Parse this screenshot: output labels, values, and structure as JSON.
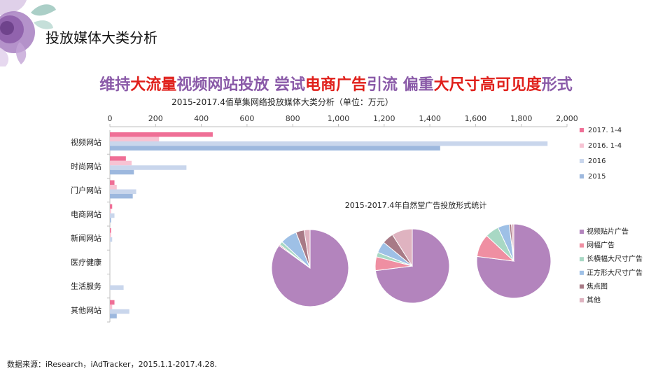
{
  "page_title": "投放媒体大类分析",
  "headline": [
    {
      "text": "维持",
      "color": "#8a5aa8"
    },
    {
      "text": "大流量",
      "color": "#e0201b"
    },
    {
      "text": "视频网站投放 尝试",
      "color": "#8a5aa8"
    },
    {
      "text": "电商广告",
      "color": "#e0201b"
    },
    {
      "text": "引流 偏重",
      "color": "#8a5aa8"
    },
    {
      "text": "大尺寸",
      "color": "#e0201b"
    },
    {
      "text": "高可见度",
      "color": "#e0201b"
    },
    {
      "text": "形式",
      "color": "#8a5aa8"
    }
  ],
  "source_note": "数据来源：iResearch，iAdTracker，2015.1.1-2017.4.28.",
  "chart_data": [
    {
      "type": "bar",
      "orientation": "horizontal",
      "title": "2015-2017.4佰草集网络投放媒体大类分析（单位：万元）",
      "categories": [
        "视频网站",
        "时尚网站",
        "门户网站",
        "电商网站",
        "新闻网站",
        "医疗健康",
        "生活服务",
        "其他网站"
      ],
      "xlim": [
        0,
        2000
      ],
      "x_ticks": [
        "0",
        "200",
        "400",
        "600",
        "800",
        "1,000",
        "1,200",
        "1,400",
        "1,600",
        "1,800",
        "2,000"
      ],
      "x_tick_values": [
        0,
        200,
        400,
        600,
        800,
        1000,
        1200,
        1400,
        1600,
        1800,
        2000
      ],
      "legend_position": "right",
      "series": [
        {
          "name": "2017. 1-4",
          "color": "#ef6f96",
          "values": [
            450,
            70,
            20,
            10,
            5,
            0,
            0,
            20
          ]
        },
        {
          "name": "2016. 1-4",
          "color": "#f7c3d3",
          "values": [
            215,
            95,
            30,
            5,
            5,
            0,
            0,
            10
          ]
        },
        {
          "name": "2016",
          "color": "#c9d6ec",
          "values": [
            1915,
            335,
            115,
            20,
            10,
            0,
            60,
            85
          ]
        },
        {
          "name": "2015",
          "color": "#9db8de",
          "values": [
            1445,
            105,
            100,
            5,
            0,
            0,
            0,
            30
          ]
        }
      ]
    },
    {
      "type": "pie",
      "title": "2015-2017.4年自然堂广告投放形式统计",
      "legend_position": "right",
      "categories": [
        "视频贴片广告",
        "网幅广告",
        "长横幅大尺寸广告",
        "正方形大尺寸广告",
        "焦点图",
        "其他"
      ],
      "colors": [
        "#b384bd",
        "#ef8fa2",
        "#a8d8c4",
        "#9ec0e6",
        "#a87a86",
        "#dfb3c0"
      ],
      "pies": [
        {
          "values": [
            85,
            0.5,
            1.5,
            7,
            3.5,
            2.5
          ]
        },
        {
          "values": [
            73,
            6,
            2,
            5,
            5,
            9
          ]
        },
        {
          "values": [
            77,
            10,
            6,
            5,
            1,
            1
          ]
        }
      ]
    }
  ]
}
